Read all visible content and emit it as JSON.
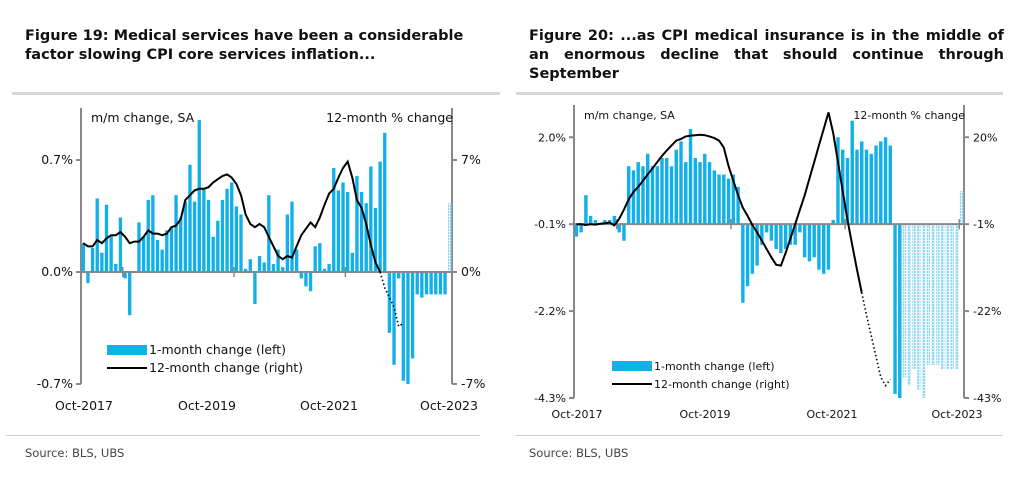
{
  "figures": [
    {
      "title": "Figure 19: Medical services have been a considerable factor slowing CPI core services inflation...",
      "source": "Source: BLS, UBS"
    },
    {
      "title": "Figure 20: ...as CPI medical insurance is in the middle of an enormous decline that should continue through September",
      "source": "Source: BLS, UBS"
    }
  ],
  "colors": {
    "bar": "#12b0e8",
    "bar_forecast": "#8fd6f2",
    "line": "#000000",
    "axis": "#888888",
    "rule": "#d7d7d7"
  },
  "chart_data": [
    {
      "type": "bar",
      "title": "Figure 19: Medical services have been a considerable factor slowing CPI core services inflation...",
      "left_axis_label": "m/m change, SA",
      "right_axis_label": "12-month % change",
      "left_ylim": [
        -0.7,
        0.7
      ],
      "right_ylim": [
        -7,
        7
      ],
      "left_ticks": [
        "-0.7%",
        "0.0%",
        "0.7%"
      ],
      "right_ticks": [
        "-7%",
        "0%",
        "7%"
      ],
      "left_tick_values": [
        -0.7,
        0.0,
        0.7
      ],
      "right_tick_values": [
        -7,
        0,
        7
      ],
      "x_ticks": [
        "Oct-2017",
        "Oct-2019",
        "Oct-2021",
        "Oct-2023"
      ],
      "x_start": "Jan-2017",
      "forecast_start_index": 79,
      "legend": [
        "1-month change (left)",
        "12-month change (right)"
      ],
      "legend_position": "bottom-left",
      "series": [
        {
          "name": "1-month change (left)",
          "axis": "left",
          "values": [
            0.18,
            -0.07,
            0.15,
            0.46,
            0.12,
            0.42,
            0.23,
            0.05,
            0.34,
            -0.04,
            -0.27,
            0.0,
            0.31,
            0.22,
            0.45,
            0.48,
            0.2,
            0.14,
            0.26,
            0.28,
            0.48,
            0.34,
            0.44,
            0.67,
            0.44,
            0.95,
            0.52,
            0.45,
            0.22,
            0.32,
            0.45,
            0.52,
            0.56,
            0.41,
            0.36,
            0.02,
            0.08,
            -0.2,
            0.1,
            0.06,
            0.48,
            0.05,
            0.14,
            0.03,
            0.36,
            0.44,
            0.14,
            -0.04,
            -0.09,
            -0.12,
            0.16,
            0.18,
            0.02,
            0.05,
            0.65,
            0.51,
            0.56,
            0.5,
            0.12,
            0.6,
            0.5,
            0.43,
            0.66,
            0.4,
            0.69,
            0.87,
            -0.38,
            -0.58,
            -0.04,
            -0.68,
            -0.7,
            -0.54,
            -0.14,
            -0.16,
            -0.14,
            -0.14,
            -0.14,
            -0.14,
            -0.14,
            0.43
          ]
        },
        {
          "name": "12-month change (right)",
          "axis": "right",
          "values": [
            1.8,
            1.6,
            1.6,
            2.0,
            1.8,
            2.1,
            2.3,
            2.3,
            2.5,
            2.2,
            1.8,
            1.9,
            1.9,
            2.2,
            2.6,
            2.4,
            2.4,
            2.3,
            2.4,
            2.8,
            2.9,
            3.3,
            4.5,
            4.8,
            5.1,
            5.2,
            5.2,
            5.3,
            5.6,
            5.8,
            6.0,
            6.1,
            5.9,
            5.5,
            4.8,
            3.6,
            3.0,
            2.8,
            3.0,
            2.8,
            2.2,
            1.6,
            1.0,
            0.8,
            1.0,
            0.9,
            1.6,
            2.3,
            2.7,
            3.1,
            2.8,
            3.4,
            4.2,
            4.9,
            5.2,
            5.9,
            6.5,
            6.9,
            5.9,
            4.5,
            4.0,
            3.0,
            1.7,
            0.6,
            0.0,
            -1.0,
            -1.6,
            -2.2,
            -3.4,
            -3.2
          ]
        }
      ],
      "line_forecast_from_index": 64
    },
    {
      "type": "bar",
      "title": "Figure 20: ...as CPI medical insurance is in the middle of an enormous decline that should continue through September",
      "left_axis_label": "m/m change, SA",
      "right_axis_label": "12-month % change",
      "left_ylim": [
        -4.3,
        2.9
      ],
      "right_ylim": [
        -43,
        29
      ],
      "left_ticks": [
        "-4.3%",
        "-2.2%",
        "-0.1%",
        "2.0%"
      ],
      "right_ticks": [
        "-43%",
        "-22%",
        "-1%",
        "20%"
      ],
      "left_tick_values": [
        -4.3,
        -2.2,
        -0.1,
        2.0
      ],
      "right_tick_values": [
        -43,
        -22,
        -1,
        20
      ],
      "x_ticks": [
        "Oct-2017",
        "Oct-2019",
        "Oct-2021",
        "Oct-2023"
      ],
      "x_start": "Jan-2017",
      "forecast_start_index": 69,
      "legend": [
        "1-month change (left)",
        "12-month change (right)"
      ],
      "legend_position": "bottom-left",
      "series": [
        {
          "name": "1-month change (left)",
          "axis": "left",
          "values": [
            -0.4,
            -0.3,
            0.6,
            0.1,
            0.0,
            -0.1,
            0.0,
            0.0,
            0.1,
            -0.3,
            -0.5,
            1.3,
            1.2,
            1.4,
            1.3,
            1.6,
            1.3,
            1.3,
            1.5,
            1.5,
            1.3,
            1.7,
            1.9,
            1.4,
            2.2,
            1.5,
            1.4,
            1.6,
            1.4,
            1.2,
            1.1,
            1.1,
            1.0,
            1.1,
            0.8,
            -2.0,
            -1.6,
            -1.3,
            -1.1,
            -0.6,
            -0.3,
            -0.5,
            -0.7,
            -0.8,
            -0.7,
            -0.6,
            -0.6,
            -0.3,
            -0.9,
            -1.0,
            -0.9,
            -1.2,
            -1.3,
            -1.2,
            0.0,
            2.0,
            1.7,
            1.5,
            2.4,
            1.7,
            1.9,
            1.7,
            1.6,
            1.8,
            1.9,
            2.0,
            1.8,
            -4.2,
            -4.3,
            -3.8,
            -4.0,
            -3.6,
            -4.1,
            -4.3,
            -3.5,
            -3.5,
            -3.5,
            -3.6,
            -3.6,
            -3.6,
            -3.6,
            0.7
          ]
        },
        {
          "name": "12-month change (right)",
          "axis": "right",
          "values": [
            -1.0,
            -1.0,
            -1.2,
            -1.0,
            -1.1,
            -0.9,
            -0.8,
            -0.6,
            -1.3,
            0.3,
            2.5,
            5.0,
            6.8,
            8.0,
            9.5,
            11.0,
            12.5,
            14.0,
            15.5,
            16.8,
            18.0,
            19.2,
            19.6,
            20.2,
            20.4,
            20.5,
            20.6,
            20.5,
            20.2,
            19.8,
            19.2,
            17.5,
            13.0,
            9.5,
            6.0,
            3.0,
            1.0,
            -1.2,
            -3.0,
            -5.0,
            -7.0,
            -9.0,
            -10.8,
            -11.0,
            -8.0,
            -4.5,
            -1.0,
            2.5,
            6.0,
            10.0,
            14.0,
            18.0,
            22.0,
            26.0,
            21.0,
            14.0,
            7.0,
            0.0,
            -6.0,
            -12.0,
            -17.5,
            -23.0,
            -28.0,
            -33.0,
            -38.0,
            -40.0,
            -38.5
          ]
        }
      ],
      "line_forecast_from_index": 60
    }
  ]
}
